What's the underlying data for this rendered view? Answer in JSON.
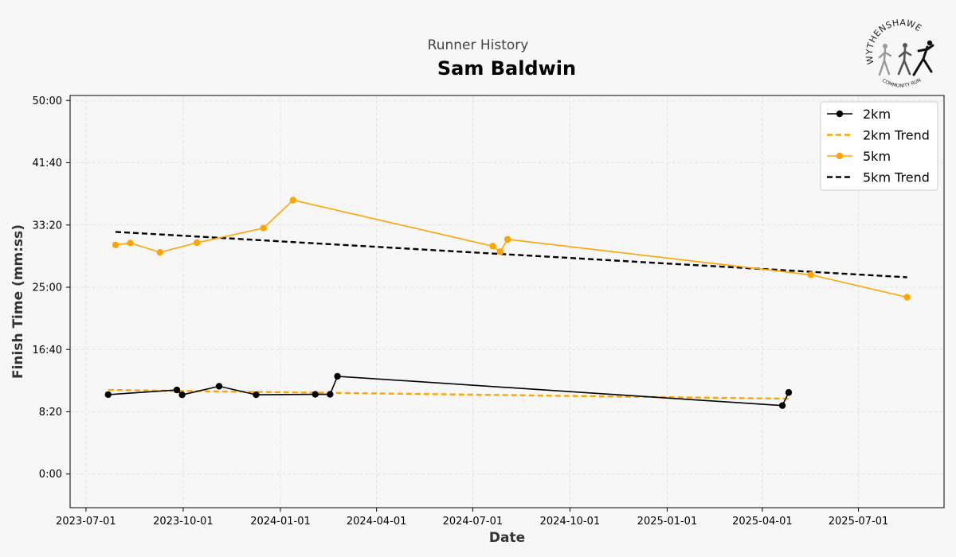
{
  "header": {
    "suptitle": "Runner History",
    "title": "Sam Baldwin"
  },
  "logo": {
    "text_top": "WYTHENSHAWE",
    "text_bottom": "COMMUNITY RUN"
  },
  "colors": {
    "2km": "#000000",
    "5km": "#ffa500",
    "2km_trend": "#ffa500",
    "5km_trend": "#000000",
    "grid": "#dddddd"
  },
  "chart_data": {
    "type": "line",
    "title": "Sam Baldwin",
    "subtitle": "Runner History",
    "xlabel": "Date",
    "ylabel": "Finish Time (mm:ss)",
    "x_ticks": [
      "2023-07-01",
      "2023-10-01",
      "2024-01-01",
      "2024-04-01",
      "2024-07-01",
      "2024-10-01",
      "2025-01-01",
      "2025-04-01",
      "2025-07-01"
    ],
    "y_ticks": [
      "0:00",
      "8:20",
      "16:40",
      "25:00",
      "33:20",
      "41:40",
      "50:00"
    ],
    "y_tick_seconds": [
      0,
      500,
      1000,
      1500,
      2000,
      2500,
      3000
    ],
    "xlim": [
      "2023-06-16",
      "2025-09-20"
    ],
    "ylim_seconds": [
      -270,
      3040
    ],
    "grid": true,
    "legend_position": "top-right",
    "series": [
      {
        "name": "2km",
        "style": "solid-marker",
        "points": [
          {
            "x": "2023-07-22",
            "y": "10:38"
          },
          {
            "x": "2023-09-25",
            "y": "11:15"
          },
          {
            "x": "2023-09-30",
            "y": "10:36"
          },
          {
            "x": "2023-11-04",
            "y": "11:45"
          },
          {
            "x": "2023-12-09",
            "y": "10:37"
          },
          {
            "x": "2024-02-03",
            "y": "10:40"
          },
          {
            "x": "2024-02-17",
            "y": "10:40"
          },
          {
            "x": "2024-02-24",
            "y": "13:05"
          },
          {
            "x": "2025-04-20",
            "y": "9:10"
          },
          {
            "x": "2025-04-26",
            "y": "10:55"
          }
        ]
      },
      {
        "name": "2km Trend",
        "style": "dashed",
        "points": [
          {
            "x": "2023-07-22",
            "y": "11:15"
          },
          {
            "x": "2025-04-26",
            "y": "10:05"
          }
        ]
      },
      {
        "name": "5km",
        "style": "solid-marker",
        "points": [
          {
            "x": "2023-07-29",
            "y": "30:40"
          },
          {
            "x": "2023-08-12",
            "y": "30:55"
          },
          {
            "x": "2023-09-09",
            "y": "29:40"
          },
          {
            "x": "2023-10-14",
            "y": "30:58"
          },
          {
            "x": "2023-12-16",
            "y": "32:55"
          },
          {
            "x": "2024-01-13",
            "y": "36:40"
          },
          {
            "x": "2024-07-20",
            "y": "30:30"
          },
          {
            "x": "2024-07-27",
            "y": "29:45"
          },
          {
            "x": "2024-08-03",
            "y": "31:25"
          },
          {
            "x": "2025-05-17",
            "y": "26:40"
          },
          {
            "x": "2025-08-16",
            "y": "23:40"
          }
        ]
      },
      {
        "name": "5km Trend",
        "style": "dashed",
        "points": [
          {
            "x": "2023-07-29",
            "y": "32:25"
          },
          {
            "x": "2025-08-16",
            "y": "26:20"
          }
        ]
      }
    ]
  }
}
